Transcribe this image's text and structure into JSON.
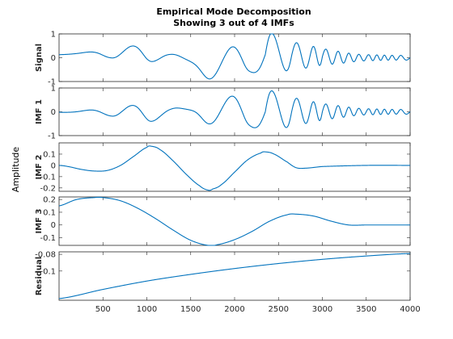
{
  "chart_data": {
    "type": "line",
    "title": "Empirical Mode Decomposition",
    "subtitle": "Showing 3 out of 4 IMFs",
    "ylabel": "Amplitude",
    "line_color": "#0072BD",
    "xlim": [
      0,
      4000
    ],
    "xticks": [
      500,
      1000,
      1500,
      2000,
      2500,
      3000,
      3500,
      4000
    ],
    "xtick_labels": [
      "500",
      "1000",
      "1500",
      "2000",
      "2500",
      "3000",
      "3500",
      "4000"
    ],
    "panels": [
      {
        "name": "Signal",
        "ylim": [
          -1,
          1
        ],
        "yticks": [
          1,
          0,
          -1
        ],
        "ytick_labels": [
          "1",
          "0",
          "-1"
        ],
        "components": [
          "IMF 1",
          "IMF 2",
          "IMF 3"
        ],
        "offset": 0.0
      },
      {
        "name": "IMF 1",
        "ylim": [
          -1,
          1
        ],
        "yticks": [
          1,
          0,
          -1
        ],
        "ytick_labels": [
          "1",
          "0",
          "-1"
        ],
        "components": [
          "IMF 1"
        ],
        "offset": 0.0
      },
      {
        "name": "IMF 2",
        "ylim": [
          -0.23,
          0.2
        ],
        "yticks": [
          0.1,
          0,
          -0.1,
          -0.2
        ],
        "ytick_labels": [
          "0.1",
          "0",
          "-0.1",
          "-0.2"
        ],
        "components": [
          "IMF 2"
        ],
        "offset": 0.0
      },
      {
        "name": "IMF 3",
        "ylim": [
          -0.16,
          0.22
        ],
        "yticks": [
          0.2,
          0.1,
          0,
          -0.1
        ],
        "ytick_labels": [
          "0.2",
          "0.1",
          "0",
          "-0.1"
        ],
        "components": [
          "IMF 3"
        ],
        "offset": 0.0
      },
      {
        "name": "Residual",
        "ylim": [
          -0.135,
          -0.077
        ],
        "yticks": [
          -0.08,
          -0.1
        ],
        "ytick_labels": [
          "-0.08",
          "-0.1"
        ],
        "components": [
          "Residual"
        ],
        "offset": 0.0
      }
    ],
    "imf1_amplitude_envelope": {
      "x": [
        0,
        300,
        600,
        800,
        1050,
        1300,
        1500,
        1700,
        1900,
        2100,
        2200,
        2350,
        2450,
        2600,
        2800,
        3000,
        3200,
        3400,
        3600,
        3800,
        4000
      ],
      "amplitude": [
        0.02,
        0.06,
        0.18,
        0.25,
        0.4,
        0.2,
        0.15,
        0.5,
        0.6,
        0.75,
        0.65,
        0.9,
        0.85,
        0.65,
        0.5,
        0.35,
        0.25,
        0.15,
        0.12,
        0.1,
        0.1
      ]
    },
    "imf1_phase_cycles_at_x": {
      "x": [
        0,
        600,
        1050,
        1700,
        2350,
        2650,
        3000,
        3500,
        4000
      ],
      "cycles": [
        -0.25,
        0.75,
        1.75,
        2.75,
        4.0,
        5.0,
        7.0,
        11.0,
        16.0
      ]
    },
    "imf2": {
      "x": [
        0,
        100,
        250,
        400,
        550,
        700,
        850,
        1000,
        1050,
        1150,
        1300,
        1450,
        1600,
        1700,
        1750,
        1850,
        2000,
        2150,
        2300,
        2350,
        2450,
        2600,
        2700,
        2800,
        3000,
        3500,
        4000
      ],
      "y": [
        0.0,
        -0.01,
        -0.035,
        -0.05,
        -0.045,
        0.0,
        0.08,
        0.16,
        0.17,
        0.14,
        0.04,
        -0.08,
        -0.18,
        -0.22,
        -0.21,
        -0.17,
        -0.06,
        0.05,
        0.11,
        0.12,
        0.1,
        0.03,
        -0.02,
        -0.025,
        -0.01,
        0.0,
        0.0
      ]
    },
    "imf3": {
      "x": [
        0,
        200,
        400,
        500,
        700,
        900,
        1100,
        1300,
        1500,
        1700,
        1800,
        2000,
        2200,
        2400,
        2600,
        2700,
        2900,
        3100,
        3300,
        3500,
        3700,
        4000
      ],
      "y": [
        0.15,
        0.2,
        0.215,
        0.215,
        0.19,
        0.13,
        0.05,
        -0.04,
        -0.12,
        -0.16,
        -0.155,
        -0.115,
        -0.05,
        0.03,
        0.08,
        0.085,
        0.07,
        0.03,
        0.0,
        0.0,
        0.0,
        0.0
      ]
    },
    "residual": {
      "x": [
        0,
        500,
        1000,
        1500,
        2000,
        2500,
        3000,
        3500,
        4000
      ],
      "y": [
        -0.133,
        -0.122,
        -0.112,
        -0.104,
        -0.097,
        -0.091,
        -0.086,
        -0.082,
        -0.079
      ]
    }
  }
}
